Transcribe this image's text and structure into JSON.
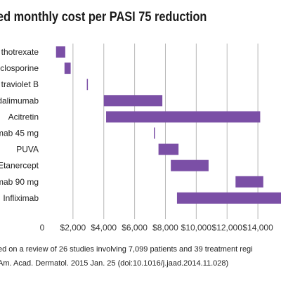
{
  "chart_data": {
    "type": "bar",
    "title": "ed monthly cost per PASI 75 reduction",
    "categories": [
      "thotrexate",
      "closporine",
      "traviolet B",
      "dalimumab",
      "Acitretin",
      "mab 45 mg",
      "PUVA",
      "Etanercept",
      "mab 90 mg",
      "Infliximab"
    ],
    "ranges": [
      [
        900,
        1500
      ],
      [
        1450,
        1850
      ],
      [
        2900,
        2950
      ],
      [
        4000,
        7800
      ],
      [
        4150,
        14150
      ],
      [
        7250,
        7300
      ],
      [
        7550,
        8850
      ],
      [
        8350,
        10800
      ],
      [
        12550,
        14350
      ],
      [
        8750,
        15500
      ]
    ],
    "xlim": [
      0,
      15500
    ],
    "xticks": [
      "0",
      "$2,000",
      "$4,000",
      "$6,000",
      "$8,000",
      "$10,000",
      "$12,000",
      "$14,000"
    ],
    "xtick_values": [
      0,
      2000,
      4000,
      6000,
      8000,
      10000,
      12000,
      14000
    ],
    "grid": true,
    "bar_color": "#7b4fa6",
    "grid_color": "#b8b8b8",
    "footnote_lines": [
      "ed on a review of 26 studies involving 7,099 patients and 39 treatment regi",
      "Am. Acad. Dermatol. 2015 Jan. 25 (doi:10.1016/j.jaad.2014.11.028)"
    ]
  }
}
